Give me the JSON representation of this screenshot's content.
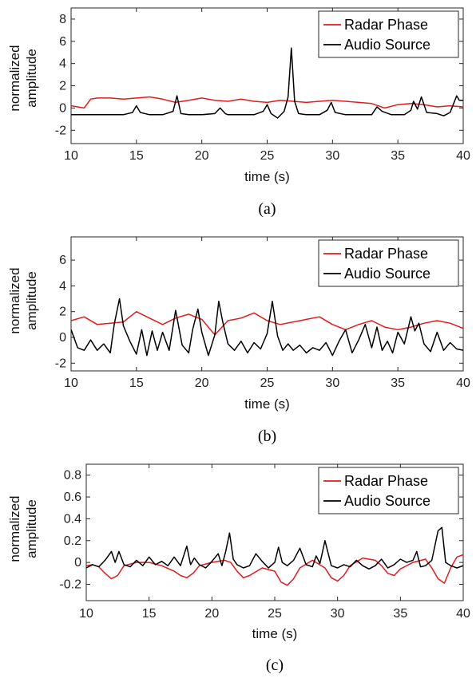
{
  "chart_data": [
    {
      "type": "line",
      "caption": "(a)",
      "xlabel": "time (s)",
      "ylabel_lines": [
        "normalized",
        "amplitude"
      ],
      "xlim": [
        10,
        40
      ],
      "ylim": [
        -3.2,
        9
      ],
      "xticks": [
        10,
        15,
        20,
        25,
        30,
        35,
        40
      ],
      "xtick_labels": [
        "10",
        "15",
        "20",
        "25",
        "30",
        "35",
        "40"
      ],
      "yticks": [
        -2,
        0,
        2,
        4,
        6,
        8
      ],
      "ytick_labels": [
        "-2",
        "0",
        "2",
        "4",
        "6",
        "8"
      ],
      "legend_position": "top-right",
      "grid": false,
      "series": [
        {
          "name": "Radar Phase",
          "color": "#e31a1c",
          "x": [
            10,
            11,
            11.5,
            12,
            13,
            14,
            15,
            16,
            17,
            18,
            19,
            20,
            21,
            22,
            23,
            24,
            25,
            26,
            27,
            28,
            29,
            30,
            31,
            32,
            33,
            34,
            35,
            36,
            37,
            38,
            39,
            40
          ],
          "y": [
            0.2,
            0.0,
            0.8,
            0.9,
            0.9,
            0.8,
            0.9,
            1.0,
            0.8,
            0.5,
            0.7,
            0.9,
            0.7,
            0.6,
            0.8,
            0.6,
            0.5,
            0.7,
            0.6,
            0.5,
            0.6,
            0.7,
            0.6,
            0.5,
            0.4,
            0.0,
            0.3,
            0.4,
            0.3,
            0.1,
            0.2,
            0.1
          ]
        },
        {
          "name": "Audio Source",
          "color": "#000000",
          "x": [
            10,
            11,
            12,
            13,
            14,
            14.7,
            15,
            15.3,
            16,
            17,
            17.8,
            18.1,
            18.4,
            19,
            20,
            21,
            21.4,
            21.8,
            22,
            23,
            24,
            24.7,
            25,
            25.3,
            25.8,
            26.3,
            26.6,
            26.85,
            27.1,
            27.4,
            28,
            29,
            29.6,
            29.9,
            30.2,
            31,
            32,
            33,
            33.4,
            33.8,
            34.5,
            35,
            35.5,
            36,
            36.2,
            36.5,
            36.8,
            37.2,
            38,
            38.5,
            39,
            39.5,
            39.7,
            40
          ],
          "y": [
            -0.6,
            -0.6,
            -0.6,
            -0.6,
            -0.6,
            -0.4,
            0.2,
            -0.4,
            -0.6,
            -0.6,
            -0.3,
            1.1,
            -0.5,
            -0.6,
            -0.6,
            -0.5,
            0.0,
            -0.5,
            -0.6,
            -0.6,
            -0.6,
            -0.3,
            0.3,
            -0.5,
            -0.9,
            -0.3,
            1.0,
            5.4,
            0.6,
            -0.5,
            -0.6,
            -0.6,
            -0.2,
            0.5,
            -0.4,
            -0.6,
            -0.6,
            -0.6,
            0.1,
            -0.3,
            -0.6,
            -0.6,
            -0.6,
            -0.2,
            0.6,
            -0.1,
            1.0,
            -0.4,
            -0.5,
            -0.7,
            -0.4,
            1.1,
            0.7,
            0.7
          ]
        }
      ]
    },
    {
      "type": "line",
      "caption": "(b)",
      "xlabel": "time (s)",
      "ylabel_lines": [
        "normalized",
        "amplitude"
      ],
      "xlim": [
        10,
        40
      ],
      "ylim": [
        -2.6,
        7.8
      ],
      "xticks": [
        10,
        15,
        20,
        25,
        30,
        35,
        40
      ],
      "xtick_labels": [
        "10",
        "15",
        "20",
        "25",
        "30",
        "35",
        "40"
      ],
      "yticks": [
        -2,
        0,
        2,
        4,
        6
      ],
      "ytick_labels": [
        "-2",
        "0",
        "2",
        "4",
        "6"
      ],
      "legend_position": "top-right",
      "grid": false,
      "series": [
        {
          "name": "Radar Phase",
          "color": "#e31a1c",
          "x": [
            10,
            11,
            12,
            13,
            14,
            15,
            16,
            17,
            18,
            19,
            20,
            21,
            22,
            23,
            24,
            25,
            26,
            27,
            28,
            29,
            30,
            31,
            32,
            33,
            34,
            35,
            36,
            37,
            38,
            39,
            40
          ],
          "y": [
            1.3,
            1.6,
            1.0,
            1.1,
            1.2,
            2.0,
            1.5,
            1.0,
            1.5,
            1.8,
            1.4,
            0.2,
            1.3,
            1.5,
            1.9,
            1.3,
            1.0,
            1.2,
            1.4,
            1.6,
            1.0,
            0.6,
            1.0,
            1.3,
            0.8,
            0.6,
            0.8,
            1.1,
            1.3,
            1.1,
            0.7
          ]
        },
        {
          "name": "Audio Source",
          "color": "#000000",
          "x": [
            10,
            10.5,
            11,
            11.5,
            12,
            12.5,
            13,
            13.3,
            13.7,
            14,
            14.5,
            15,
            15.4,
            15.8,
            16.2,
            16.6,
            17,
            17.5,
            18,
            18.5,
            19,
            19.3,
            19.7,
            20,
            20.5,
            21,
            21.3,
            21.6,
            22,
            22.5,
            23,
            23.5,
            24,
            24.5,
            25,
            25.4,
            25.8,
            26.2,
            26.6,
            27,
            27.5,
            28,
            28.5,
            29,
            29.5,
            30,
            30.5,
            31,
            31.5,
            32,
            32.5,
            33,
            33.4,
            33.8,
            34.2,
            34.6,
            35,
            35.5,
            36,
            36.3,
            36.6,
            37,
            37.5,
            38,
            38.5,
            39,
            39.5,
            40
          ],
          "y": [
            0.6,
            -0.8,
            -1.0,
            -0.2,
            -1.0,
            -0.5,
            -1.2,
            1.0,
            3.0,
            0.9,
            -0.3,
            -1.3,
            0.6,
            -1.4,
            0.5,
            -1.0,
            0.4,
            -1.0,
            2.1,
            -0.6,
            -1.2,
            0.6,
            2.2,
            0.4,
            -1.4,
            0.2,
            2.8,
            1.2,
            -0.5,
            -1.0,
            -0.3,
            -1.2,
            -0.4,
            -0.9,
            0.3,
            2.8,
            0.1,
            -1.0,
            -0.5,
            -1.0,
            -0.6,
            -1.2,
            -0.8,
            -1.0,
            -0.4,
            -1.4,
            -0.3,
            0.6,
            -1.2,
            -0.2,
            1.0,
            -0.8,
            0.8,
            -1.0,
            -0.3,
            -1.2,
            0.4,
            -0.5,
            1.6,
            0.5,
            1.1,
            -0.5,
            -1.1,
            0.4,
            -1.0,
            -0.4,
            -0.9,
            -1.0
          ]
        }
      ]
    },
    {
      "type": "line",
      "caption": "(c)",
      "xlabel": "time (s)",
      "ylabel_lines": [
        "normalized",
        "amplitude"
      ],
      "xlim": [
        10,
        40
      ],
      "ylim": [
        -0.35,
        0.9
      ],
      "xticks": [
        10,
        15,
        20,
        25,
        30,
        35,
        40
      ],
      "xtick_labels": [
        "10",
        "15",
        "20",
        "25",
        "30",
        "35",
        "40"
      ],
      "yticks": [
        -0.2,
        0,
        0.2,
        0.4,
        0.6,
        0.8
      ],
      "ytick_labels": [
        "-0.2",
        "0",
        "0.2",
        "0.4",
        "0.6",
        "0.8"
      ],
      "legend_position": "top-right",
      "grid": false,
      "series": [
        {
          "name": "Radar Phase",
          "color": "#e31a1c",
          "x": [
            10,
            10.5,
            11,
            11.5,
            12,
            12.5,
            13,
            14,
            15,
            16,
            17,
            17.5,
            18,
            18.5,
            19,
            20,
            21,
            21.5,
            22,
            22.5,
            23,
            24,
            25,
            25.5,
            26,
            26.5,
            27,
            28,
            29,
            29.5,
            30,
            30.5,
            31,
            32,
            33,
            33.5,
            34,
            34.5,
            35,
            36,
            37,
            37.5,
            38,
            38.5,
            39,
            39.5,
            40
          ],
          "y": [
            -0.03,
            -0.02,
            -0.04,
            -0.1,
            -0.15,
            -0.12,
            -0.03,
            0.0,
            0.0,
            -0.03,
            -0.08,
            -0.12,
            -0.14,
            -0.1,
            -0.03,
            0.0,
            0.02,
            0.0,
            -0.08,
            -0.14,
            -0.12,
            -0.05,
            -0.08,
            -0.18,
            -0.21,
            -0.15,
            -0.05,
            0.02,
            -0.05,
            -0.14,
            -0.17,
            -0.12,
            -0.03,
            0.04,
            0.02,
            -0.03,
            -0.1,
            -0.12,
            -0.06,
            0.0,
            0.03,
            -0.05,
            -0.15,
            -0.19,
            -0.05,
            0.05,
            0.07
          ]
        },
        {
          "name": "Audio Source",
          "color": "#000000",
          "x": [
            10,
            10.5,
            11,
            11.5,
            12,
            12.3,
            12.6,
            13,
            13.5,
            14,
            14.5,
            15,
            15.5,
            16,
            16.5,
            17,
            17.5,
            18,
            18.3,
            18.6,
            19,
            19.5,
            20,
            20.5,
            20.8,
            21.1,
            21.4,
            21.7,
            22,
            22.5,
            23,
            23.5,
            24,
            24.5,
            25,
            25.3,
            25.6,
            26,
            26.5,
            27,
            27.5,
            28,
            28.3,
            28.6,
            29,
            29.5,
            30,
            30.5,
            31,
            31.5,
            32,
            32.5,
            33,
            33.5,
            34,
            34.5,
            35,
            35.5,
            36,
            36.3,
            36.6,
            37,
            37.5,
            38,
            38.3,
            38.6,
            39,
            39.5,
            40
          ],
          "y": [
            -0.05,
            -0.02,
            -0.04,
            0.02,
            0.1,
            0.0,
            0.1,
            -0.02,
            -0.04,
            0.02,
            -0.03,
            0.05,
            -0.02,
            0.01,
            -0.03,
            0.05,
            -0.03,
            0.15,
            -0.02,
            0.04,
            -0.02,
            -0.05,
            0.01,
            0.08,
            -0.03,
            0.1,
            0.27,
            0.03,
            -0.02,
            -0.05,
            -0.03,
            0.08,
            0.01,
            -0.05,
            0.0,
            0.14,
            0.0,
            -0.03,
            0.02,
            0.13,
            -0.02,
            -0.04,
            0.06,
            -0.01,
            0.2,
            -0.03,
            -0.05,
            -0.02,
            -0.04,
            0.02,
            -0.03,
            -0.06,
            -0.03,
            0.03,
            -0.05,
            -0.02,
            0.03,
            0.0,
            0.02,
            0.1,
            -0.04,
            -0.03,
            0.02,
            0.29,
            0.32,
            0.0,
            -0.03,
            -0.05,
            -0.03
          ]
        }
      ]
    }
  ]
}
